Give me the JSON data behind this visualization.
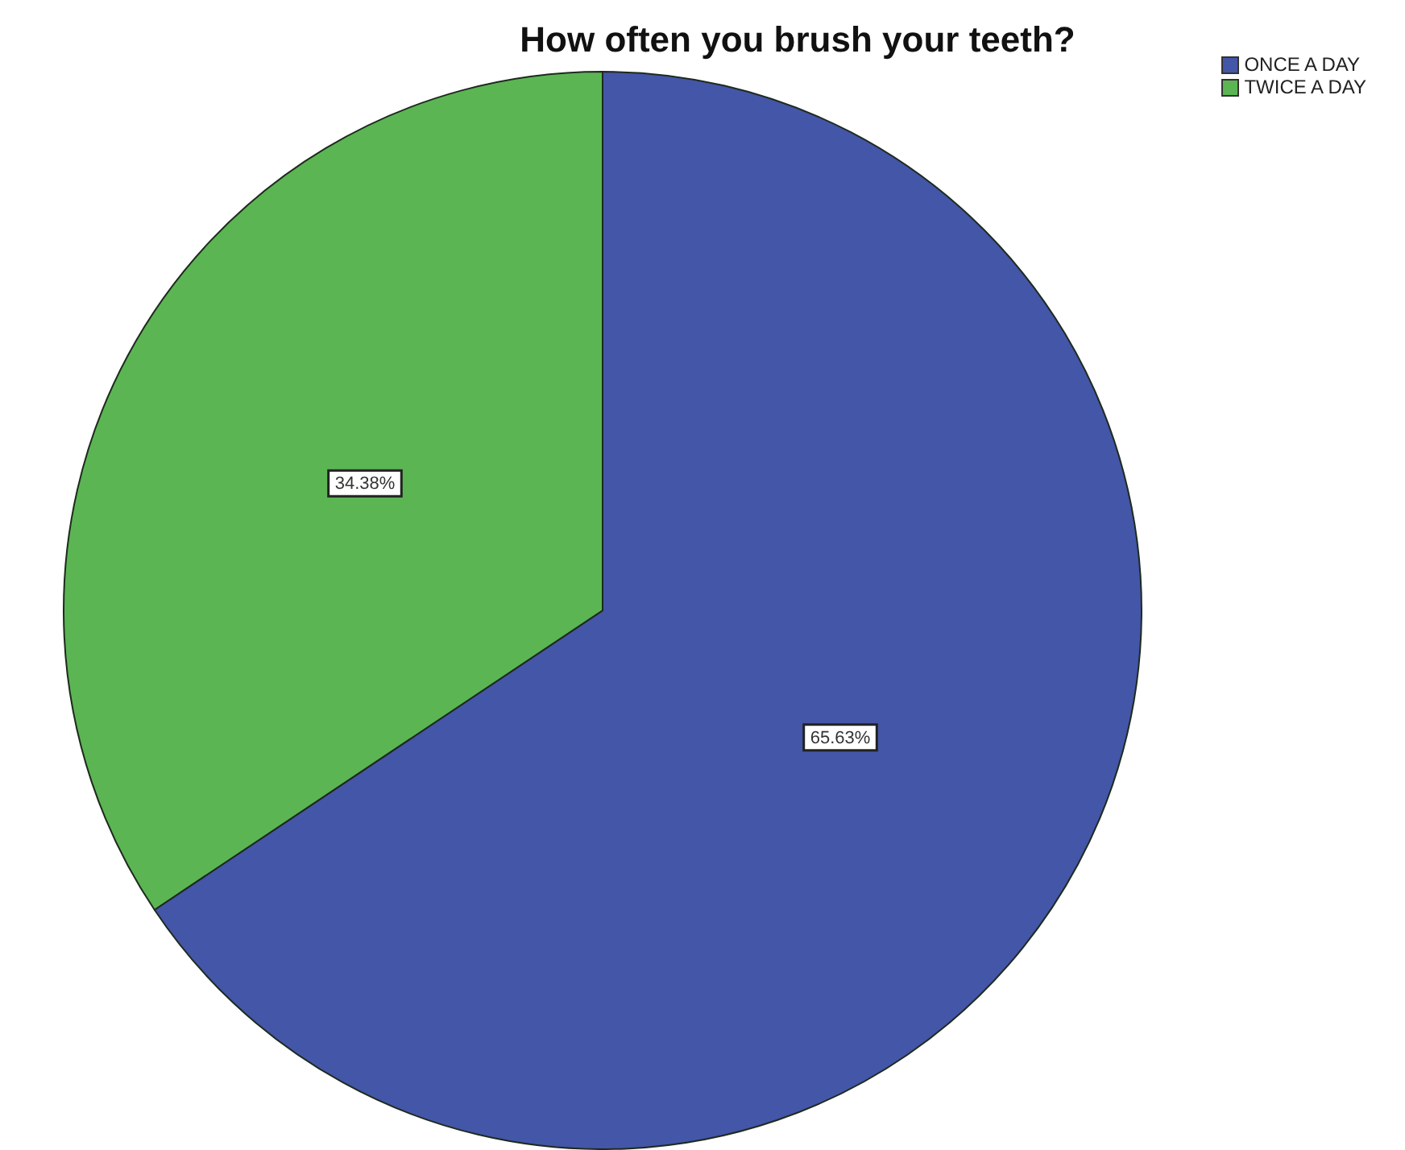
{
  "chart_data": {
    "type": "pie",
    "title": "How often you brush your teeth?",
    "categories": [
      "ONCE A DAY",
      "TWICE A DAY"
    ],
    "values": [
      65.63,
      34.38
    ],
    "colors": [
      "#4356a8",
      "#5bb553"
    ],
    "value_labels": [
      "65.63%",
      "34.38%"
    ],
    "legend": "top right"
  }
}
